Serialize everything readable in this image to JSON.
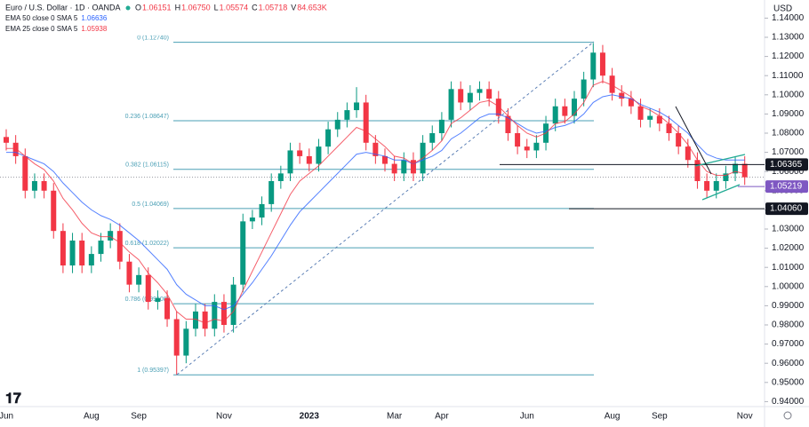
{
  "chart_data": {
    "type": "candlestick",
    "symbol": "Euro / U.S. Dollar · 1D · OANDA",
    "ohlc_header": [
      {
        "label": "O",
        "value": "1.06151"
      },
      {
        "label": "H",
        "value": "1.06750"
      },
      {
        "label": "L",
        "value": "1.05574"
      },
      {
        "label": "C",
        "value": "1.05718"
      },
      {
        "label": "V",
        "value": "84.653K"
      }
    ],
    "currency": "USD",
    "categories": [
      "Jun",
      null,
      null,
      null,
      null,
      null,
      null,
      null,
      null,
      "Aug",
      null,
      null,
      null,
      null,
      "Sep",
      null,
      null,
      null,
      null,
      null,
      null,
      null,
      null,
      "Nov",
      null,
      null,
      null,
      null,
      null,
      null,
      null,
      null,
      "2023",
      null,
      null,
      null,
      null,
      null,
      null,
      null,
      null,
      "Mar",
      null,
      null,
      null,
      null,
      "Apr",
      null,
      null,
      null,
      null,
      null,
      null,
      null,
      null,
      "Jun",
      null,
      null,
      null,
      null,
      null,
      null,
      null,
      null,
      "Aug",
      null,
      null,
      null,
      null,
      "Sep",
      null,
      null,
      null,
      null,
      null,
      null,
      null,
      null,
      "Nov"
    ],
    "open": [
      1.078,
      1.075,
      1.068,
      1.05,
      1.055,
      1.05,
      1.029,
      1.011,
      1.024,
      1.011,
      1.017,
      1.024,
      1.029,
      1.013,
      1.001,
      1.006,
      0.992,
      0.994,
      0.983,
      0.964,
      0.978,
      0.987,
      0.978,
      0.992,
      0.98,
      1.001,
      1.034,
      1.036,
      1.043,
      1.055,
      1.059,
      1.071,
      1.068,
      1.064,
      1.073,
      1.082,
      1.087,
      1.092,
      1.096,
      1.075,
      1.068,
      1.064,
      1.059,
      1.066,
      1.059,
      1.075,
      1.08,
      1.087,
      1.103,
      1.096,
      1.101,
      1.103,
      1.098,
      1.089,
      1.08,
      1.073,
      1.071,
      1.075,
      1.085,
      1.094,
      1.089,
      1.098,
      1.108,
      1.122,
      1.11,
      1.101,
      1.098,
      1.094,
      1.087,
      1.089,
      1.085,
      1.08,
      1.073,
      1.066,
      1.055,
      1.05,
      1.055,
      1.059,
      1.064
    ],
    "high": [
      1.082,
      1.079,
      1.072,
      1.059,
      1.059,
      1.054,
      1.033,
      1.028,
      1.028,
      1.021,
      1.028,
      1.033,
      1.033,
      1.017,
      1.01,
      1.01,
      0.998,
      0.998,
      0.987,
      0.982,
      0.991,
      0.991,
      0.996,
      0.996,
      1.005,
      1.038,
      1.04,
      1.047,
      1.059,
      1.063,
      1.075,
      1.075,
      1.072,
      1.077,
      1.086,
      1.091,
      1.096,
      1.104,
      1.1,
      1.079,
      1.072,
      1.068,
      1.07,
      1.07,
      1.079,
      1.084,
      1.091,
      1.107,
      1.107,
      1.105,
      1.107,
      1.107,
      1.102,
      1.093,
      1.084,
      1.077,
      1.079,
      1.089,
      1.098,
      1.098,
      1.102,
      1.112,
      1.127,
      1.126,
      1.114,
      1.105,
      1.102,
      1.098,
      1.093,
      1.093,
      1.089,
      1.084,
      1.077,
      1.07,
      1.059,
      1.059,
      1.063,
      1.068,
      1.068
    ],
    "low": [
      1.071,
      1.064,
      1.046,
      1.046,
      1.046,
      1.025,
      1.007,
      1.007,
      1.007,
      1.007,
      1.013,
      1.02,
      1.009,
      0.997,
      0.997,
      0.988,
      0.988,
      0.979,
      0.954,
      0.96,
      0.974,
      0.974,
      0.974,
      0.976,
      0.976,
      0.997,
      1.03,
      1.032,
      1.039,
      1.051,
      1.055,
      1.064,
      1.06,
      1.06,
      1.069,
      1.078,
      1.083,
      1.088,
      1.071,
      1.064,
      1.06,
      1.055,
      1.055,
      1.055,
      1.055,
      1.071,
      1.076,
      1.083,
      1.092,
      1.092,
      1.097,
      1.094,
      1.085,
      1.076,
      1.069,
      1.067,
      1.067,
      1.071,
      1.081,
      1.085,
      1.085,
      1.094,
      1.104,
      1.106,
      1.097,
      1.094,
      1.09,
      1.083,
      1.083,
      1.081,
      1.076,
      1.069,
      1.062,
      1.051,
      1.046,
      1.046,
      1.051,
      1.055,
      1.053
    ],
    "close": [
      1.075,
      1.068,
      1.05,
      1.055,
      1.05,
      1.029,
      1.011,
      1.024,
      1.011,
      1.017,
      1.024,
      1.029,
      1.013,
      1.001,
      1.006,
      0.992,
      0.994,
      0.983,
      0.964,
      0.978,
      0.987,
      0.978,
      0.992,
      0.98,
      1.001,
      1.034,
      1.036,
      1.043,
      1.055,
      1.059,
      1.071,
      1.068,
      1.064,
      1.073,
      1.082,
      1.087,
      1.092,
      1.096,
      1.075,
      1.068,
      1.064,
      1.059,
      1.066,
      1.059,
      1.075,
      1.08,
      1.087,
      1.103,
      1.096,
      1.101,
      1.103,
      1.098,
      1.089,
      1.08,
      1.073,
      1.071,
      1.075,
      1.085,
      1.094,
      1.089,
      1.098,
      1.108,
      1.122,
      1.11,
      1.101,
      1.098,
      1.094,
      1.087,
      1.089,
      1.085,
      1.08,
      1.073,
      1.066,
      1.055,
      1.05,
      1.055,
      1.059,
      1.064,
      1.057
    ],
    "up_color": "#089981",
    "down_color": "#f23645",
    "series": [
      {
        "name": "EMA 50 close 0 SMA 5",
        "last": "1.06636",
        "color": "#2962ff",
        "values": [
          1.07,
          1.07,
          1.068,
          1.066,
          1.064,
          1.06,
          1.054,
          1.049,
          1.044,
          1.04,
          1.037,
          1.035,
          1.032,
          1.028,
          1.024,
          1.019,
          1.014,
          1.009,
          1.001,
          0.996,
          0.993,
          0.99,
          0.99,
          0.988,
          0.99,
          0.996,
          1.002,
          1.009,
          1.016,
          1.024,
          1.032,
          1.039,
          1.044,
          1.049,
          1.054,
          1.059,
          1.064,
          1.069,
          1.07,
          1.069,
          1.068,
          1.066,
          1.066,
          1.064,
          1.066,
          1.068,
          1.071,
          1.077,
          1.08,
          1.084,
          1.088,
          1.09,
          1.09,
          1.088,
          1.085,
          1.082,
          1.08,
          1.081,
          1.083,
          1.084,
          1.086,
          1.09,
          1.096,
          1.099,
          1.1,
          1.099,
          1.098,
          1.095,
          1.093,
          1.091,
          1.088,
          1.084,
          1.08,
          1.074,
          1.069,
          1.067,
          1.066,
          1.066,
          1.066
        ]
      },
      {
        "name": "EMA 25 close 0 SMA 5",
        "last": "1.05938",
        "color": "#f23645",
        "values": [
          1.072,
          1.072,
          1.068,
          1.064,
          1.061,
          1.055,
          1.046,
          1.04,
          1.033,
          1.028,
          1.026,
          1.026,
          1.023,
          1.018,
          1.014,
          1.007,
          1.002,
          0.996,
          0.987,
          0.983,
          0.983,
          0.981,
          0.983,
          0.982,
          0.987,
          0.998,
          1.008,
          1.018,
          1.028,
          1.038,
          1.048,
          1.055,
          1.059,
          1.063,
          1.068,
          1.073,
          1.078,
          1.083,
          1.081,
          1.077,
          1.073,
          1.068,
          1.067,
          1.064,
          1.067,
          1.071,
          1.076,
          1.085,
          1.088,
          1.092,
          1.096,
          1.097,
          1.094,
          1.089,
          1.084,
          1.08,
          1.078,
          1.08,
          1.085,
          1.086,
          1.09,
          1.096,
          1.105,
          1.107,
          1.105,
          1.102,
          1.099,
          1.094,
          1.092,
          1.089,
          1.085,
          1.08,
          1.074,
          1.066,
          1.06,
          1.058,
          1.058,
          1.06,
          1.059
        ]
      }
    ],
    "fib_color": "#4a9fb5",
    "fib_levels": [
      {
        "label": "0 (1.12740)",
        "value": 1.1274
      },
      {
        "label": "0.236 (1.08647)",
        "value": 1.08647
      },
      {
        "label": "0.382 (1.06115)",
        "value": 1.06115
      },
      {
        "label": "0.5 (1.04069)",
        "value": 1.04069
      },
      {
        "label": "0.618 (1.02022)",
        "value": 1.02022
      },
      {
        "label": "0.786 (0.99108)",
        "value": 0.99108
      },
      {
        "label": "1 (0.95397)",
        "value": 0.95397
      }
    ],
    "levels": [
      {
        "label": "1.06365",
        "value": 1.06365,
        "color": "#131722"
      },
      {
        "label": "1.05219",
        "value": 1.05219,
        "color": "#7e57c2"
      },
      {
        "label": "1.04060",
        "value": 1.0406,
        "color": "#131722"
      }
    ],
    "ylim": [
      0.94,
      1.14
    ],
    "yticks": [
      {
        "value": 0.94,
        "label": "0.94000"
      },
      {
        "value": 0.95,
        "label": "0.95000"
      },
      {
        "value": 0.96,
        "label": "0.96000"
      },
      {
        "value": 0.97,
        "label": "0.97000"
      },
      {
        "value": 0.98,
        "label": "0.98000"
      },
      {
        "value": 0.99,
        "label": "0.99000"
      },
      {
        "value": 1.0,
        "label": "1.00000"
      },
      {
        "value": 1.01,
        "label": "1.01000"
      },
      {
        "value": 1.02,
        "label": "1.02000"
      },
      {
        "value": 1.03,
        "label": "1.03000"
      },
      {
        "value": 1.04,
        "label": "1.04000"
      },
      {
        "value": 1.05,
        "label": "1.05000"
      },
      {
        "value": 1.06,
        "label": "1.06000"
      },
      {
        "value": 1.07,
        "label": "1.07000"
      },
      {
        "value": 1.08,
        "label": "1.08000"
      },
      {
        "value": 1.09,
        "label": "1.09000"
      },
      {
        "value": 1.1,
        "label": "1.10000"
      },
      {
        "value": 1.11,
        "label": "1.11000"
      },
      {
        "value": 1.12,
        "label": "1.12000"
      },
      {
        "value": 1.13,
        "label": "1.13000"
      },
      {
        "value": 1.14,
        "label": "1.14000"
      }
    ]
  }
}
